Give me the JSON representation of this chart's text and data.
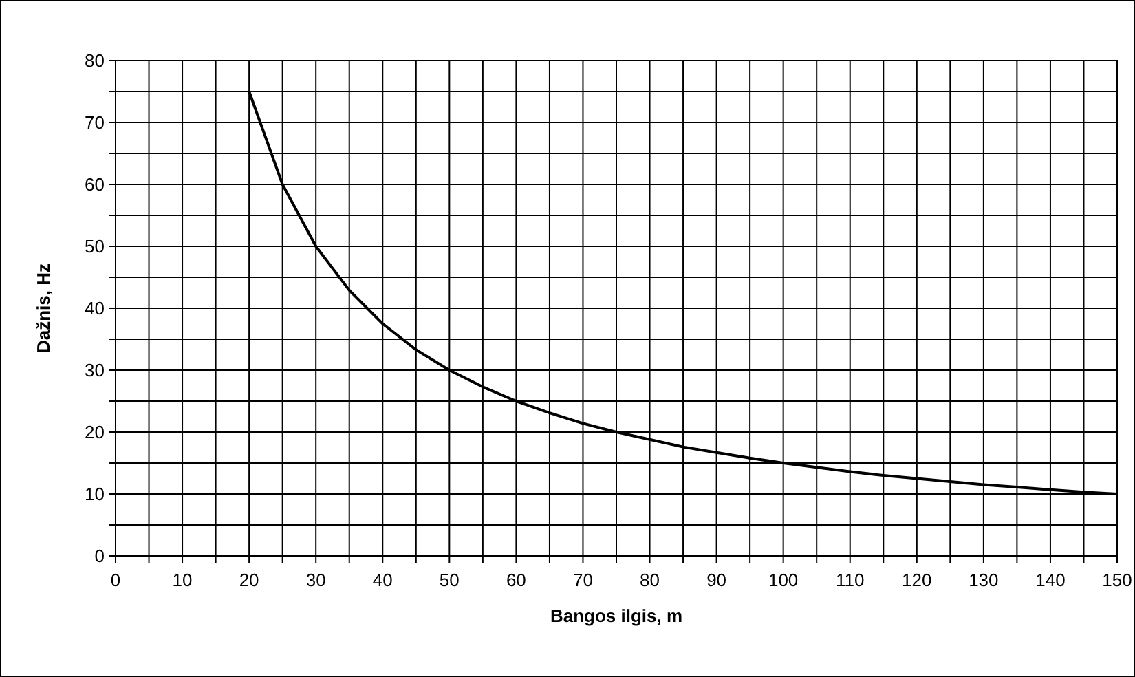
{
  "chart_data": {
    "type": "line",
    "xlabel": "Bangos ilgis, m",
    "ylabel": "Dažnis, Hz",
    "x": [
      20,
      25,
      30,
      35,
      40,
      45,
      50,
      55,
      60,
      65,
      70,
      75,
      80,
      85,
      90,
      95,
      100,
      105,
      110,
      115,
      120,
      125,
      130,
      135,
      140,
      145,
      150
    ],
    "series": [
      {
        "color": "#000000",
        "values": [
          75,
          60,
          50,
          42.9,
          37.5,
          33.3,
          30,
          27.3,
          25,
          23.1,
          21.4,
          20,
          18.8,
          17.6,
          16.7,
          15.8,
          15,
          14.3,
          13.6,
          13,
          12.5,
          12,
          11.5,
          11.1,
          10.7,
          10.3,
          10
        ]
      }
    ],
    "xlim": [
      0,
      150
    ],
    "xticks": [
      0,
      {
        "value": 5,
        "label": null
      },
      10,
      {
        "value": 15,
        "label": null
      },
      20,
      {
        "value": 25,
        "label": null
      },
      30,
      {
        "value": 35,
        "label": null
      },
      40,
      {
        "value": 45,
        "label": null
      },
      50,
      {
        "value": 55,
        "label": null
      },
      60,
      {
        "value": 65,
        "label": null
      },
      70,
      {
        "value": 75,
        "label": null
      },
      80,
      {
        "value": 85,
        "label": null
      },
      90,
      {
        "value": 95,
        "label": null
      },
      100,
      {
        "value": 105,
        "label": null
      },
      110,
      {
        "value": 115,
        "label": null
      },
      120,
      {
        "value": 125,
        "label": null
      },
      130,
      {
        "value": 135,
        "label": null
      },
      140,
      {
        "value": 145,
        "label": null
      },
      150
    ],
    "ylim": [
      0,
      80
    ],
    "yticks": [
      0,
      {
        "value": 5,
        "label": null
      },
      10,
      {
        "value": 15,
        "label": null
      },
      20,
      {
        "value": 25,
        "label": null
      },
      30,
      {
        "value": 35,
        "label": null
      },
      40,
      {
        "value": 45,
        "label": null
      },
      50,
      {
        "value": 55,
        "label": null
      },
      60,
      {
        "value": 65,
        "label": null
      },
      70,
      {
        "value": 75,
        "label": null
      },
      80
    ],
    "grid": true,
    "marker": "none",
    "line_style": "solid"
  }
}
